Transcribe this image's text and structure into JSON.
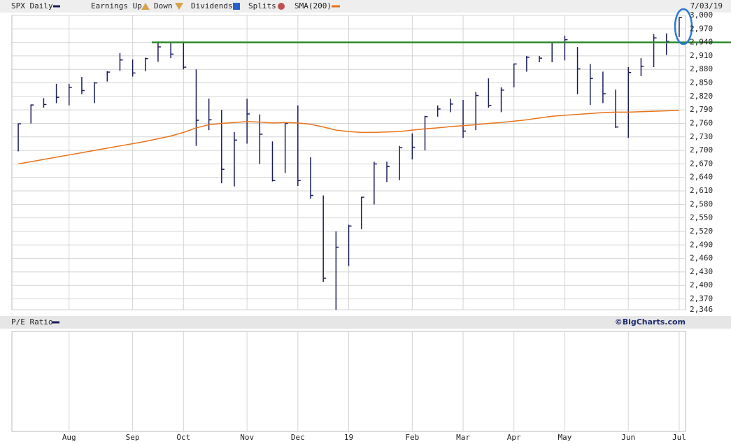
{
  "chart_data": {
    "type": "ohlc",
    "title": "SPX Daily",
    "date": "7/03/19",
    "header_items": [
      "Earnings Up",
      "Down",
      "Dividends",
      "Splits"
    ],
    "categories": [
      null,
      null,
      null,
      null,
      "Aug",
      null,
      null,
      null,
      null,
      "Sep",
      null,
      null,
      null,
      "Oct",
      null,
      null,
      null,
      null,
      "Nov",
      null,
      null,
      null,
      "Dec",
      null,
      null,
      null,
      "19",
      null,
      null,
      null,
      null,
      "Feb",
      null,
      null,
      null,
      "Mar",
      null,
      null,
      null,
      "Apr",
      null,
      null,
      null,
      "May",
      null,
      null,
      null,
      null,
      "Jun",
      null,
      null,
      null,
      "Jul"
    ],
    "series": [
      {
        "name": "SPX Daily",
        "color": "#1c1c5c",
        "high": [
          2760,
          2802,
          2816,
          2848,
          2848,
          2863,
          2852,
          2876,
          2916,
          2902,
          2906,
          2941,
          2940,
          2940,
          2880,
          2815,
          2790,
          2741,
          2815,
          2780,
          2720,
          2760,
          2800,
          2685,
          2600,
          2520,
          2535,
          2597,
          2675,
          2675,
          2710,
          2738,
          2777,
          2800,
          2815,
          2812,
          2830,
          2860,
          2840,
          2893,
          2910,
          2910,
          2940,
          2955,
          2930,
          2892,
          2875,
          2835,
          2885,
          2905,
          2958,
          2960,
          2996
        ],
        "low": [
          2698,
          2760,
          2795,
          2805,
          2800,
          2825,
          2805,
          2853,
          2877,
          2864,
          2876,
          2897,
          2905,
          2880,
          2710,
          2745,
          2627,
          2620,
          2715,
          2670,
          2631,
          2650,
          2621,
          2593,
          2408,
          2346,
          2443,
          2525,
          2580,
          2630,
          2634,
          2680,
          2700,
          2775,
          2785,
          2728,
          2745,
          2795,
          2785,
          2840,
          2875,
          2896,
          2896,
          2900,
          2825,
          2801,
          2805,
          2750,
          2728,
          2865,
          2885,
          2912,
          2952
        ],
        "close": [
          2759,
          2801,
          2802,
          2818,
          2840,
          2833,
          2850,
          2874,
          2901,
          2872,
          2904,
          2930,
          2914,
          2885,
          2767,
          2768,
          2658,
          2723,
          2781,
          2736,
          2633,
          2760,
          2633,
          2600,
          2416,
          2485,
          2532,
          2596,
          2670,
          2664,
          2706,
          2707,
          2775,
          2792,
          2803,
          2743,
          2822,
          2800,
          2834,
          2892,
          2907,
          2905,
          2940,
          2946,
          2881,
          2860,
          2826,
          2752,
          2873,
          2887,
          2950,
          2942,
          2995
        ]
      },
      {
        "name": "SMA(200)",
        "color": "#e8731a",
        "values": [
          2670,
          2675,
          2680,
          2685,
          2690,
          2695,
          2700,
          2705,
          2710,
          2715,
          2720,
          2726,
          2732,
          2740,
          2750,
          2757,
          2760,
          2762,
          2764,
          2763,
          2761,
          2762,
          2761,
          2758,
          2752,
          2745,
          2742,
          2740,
          2740,
          2741,
          2742,
          2745,
          2748,
          2750,
          2753,
          2755,
          2757,
          2760,
          2762,
          2765,
          2768,
          2772,
          2776,
          2778,
          2780,
          2782,
          2784,
          2785,
          2785,
          2786,
          2787,
          2788,
          2789
        ]
      }
    ],
    "reference_line": {
      "value": 2940,
      "color": "#2a8a2a"
    },
    "ylim": [
      2346,
      3000
    ],
    "yticks": [
      {
        "value": 3000,
        "label": "3,000"
      },
      {
        "value": 2970,
        "label": "2,970"
      },
      {
        "value": 2940,
        "label": "2,940"
      },
      {
        "value": 2910,
        "label": "2,910"
      },
      {
        "value": 2880,
        "label": "2,880"
      },
      {
        "value": 2850,
        "label": "2,850"
      },
      {
        "value": 2820,
        "label": "2,820"
      },
      {
        "value": 2790,
        "label": "2,790"
      },
      {
        "value": 2760,
        "label": "2,760"
      },
      {
        "value": 2730,
        "label": "2,730"
      },
      {
        "value": 2700,
        "label": "2,700"
      },
      {
        "value": 2670,
        "label": "2,670"
      },
      {
        "value": 2640,
        "label": "2,640"
      },
      {
        "value": 2610,
        "label": "2,610"
      },
      {
        "value": 2580,
        "label": "2,580"
      },
      {
        "value": 2550,
        "label": "2,550"
      },
      {
        "value": 2520,
        "label": "2,520"
      },
      {
        "value": 2490,
        "label": "2,490"
      },
      {
        "value": 2460,
        "label": "2,460"
      },
      {
        "value": 2430,
        "label": "2,430"
      },
      {
        "value": 2400,
        "label": "2,400"
      },
      {
        "value": 2370,
        "label": "2,370"
      },
      {
        "value": 2346,
        "label": "2,346"
      }
    ],
    "grid": true,
    "lower_panel": {
      "title": "P/E Ratio"
    },
    "source": "©BigCharts.com"
  }
}
